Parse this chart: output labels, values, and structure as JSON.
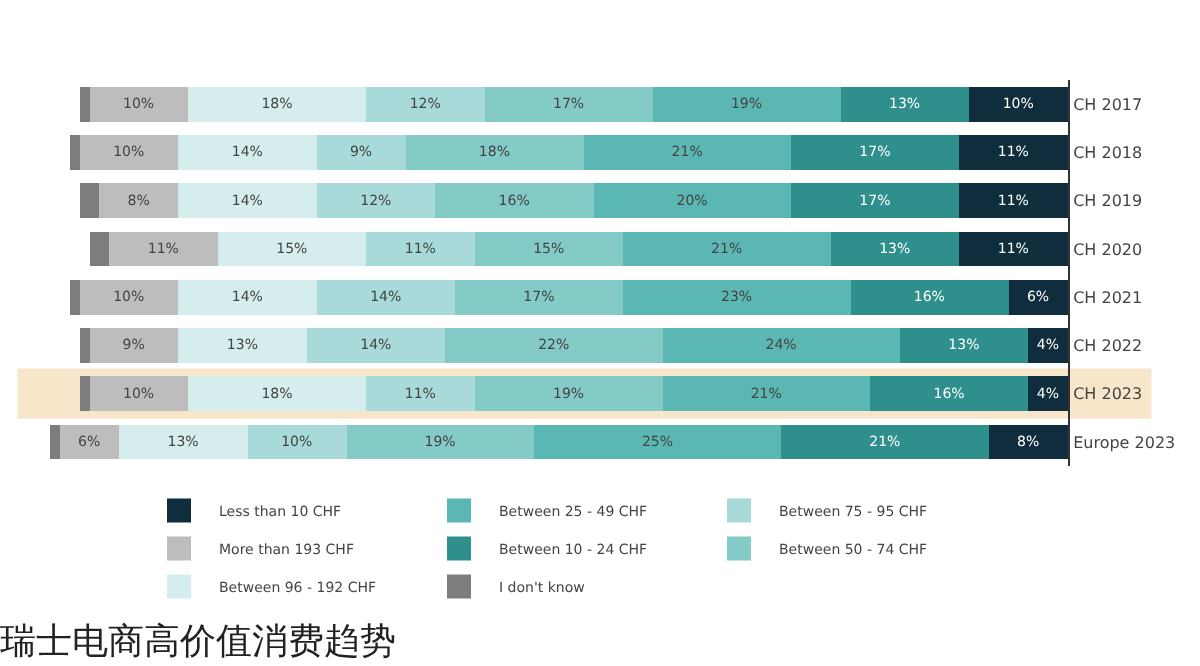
{
  "chart_data": {
    "type": "bar",
    "orientation": "horizontal",
    "stacked": true,
    "title": "瑞士电商高价值消费趋势",
    "categories": [
      "CH 2017",
      "CH 2018",
      "CH 2019",
      "CH 2020",
      "CH 2021",
      "CH 2022",
      "CH 2023",
      "Europe 2023"
    ],
    "xlim": [
      103,
      0
    ],
    "legend": "bottom",
    "tick_labels": "y",
    "series": [
      {
        "name": "Less than 10 CHF",
        "color": "#0f2d3d",
        "values": [
          10,
          11,
          11,
          11,
          6,
          4,
          4,
          8
        ],
        "value_labels": [
          "10%",
          "11%",
          "11%",
          "11%",
          "6%",
          "4%",
          "4%",
          "8%"
        ]
      },
      {
        "name": "Between 10 - 24 CHF",
        "color": "#2e8f8c",
        "values": [
          13,
          17,
          17,
          13,
          16,
          13,
          16,
          21
        ],
        "value_labels": [
          "13%",
          "17%",
          "17%",
          "13%",
          "16%",
          "13%",
          "16%",
          "21%"
        ]
      },
      {
        "name": "Between 25 - 49 CHF",
        "color": "#5ab7b4",
        "values": [
          19,
          21,
          20,
          21,
          23,
          24,
          21,
          25
        ],
        "value_labels": [
          "19%",
          "21%",
          "20%",
          "21%",
          "23%",
          "24%",
          "21%",
          "25%"
        ]
      },
      {
        "name": "Between 50 - 74 CHF",
        "color": "#84cac6",
        "values": [
          17,
          18,
          16,
          15,
          17,
          22,
          19,
          19
        ],
        "value_labels": [
          "17%",
          "18%",
          "16%",
          "15%",
          "17%",
          "22%",
          "19%",
          "19%"
        ]
      },
      {
        "name": "Between 75 - 95 CHF",
        "color": "#a9dada",
        "values": [
          12,
          9,
          12,
          11,
          14,
          14,
          11,
          10
        ],
        "value_labels": [
          "12%",
          "9%",
          "12%",
          "11%",
          "14%",
          "14%",
          "11%",
          "10%"
        ]
      },
      {
        "name": "Between 96 - 192 CHF",
        "color": "#d6edee",
        "values": [
          18,
          14,
          14,
          15,
          14,
          13,
          18,
          13
        ],
        "value_labels": [
          "18%",
          "14%",
          "14%",
          "15%",
          "14%",
          "13%",
          "18%",
          "13%"
        ]
      },
      {
        "name": "More than 193 CHF",
        "color": "#bdbdbd",
        "values": [
          10,
          10,
          8,
          11,
          10,
          9,
          10,
          6
        ],
        "value_labels": [
          "10%",
          "10%",
          "8%",
          "11%",
          "10%",
          "9%",
          "10%",
          "6%"
        ]
      },
      {
        "name": "I don't know",
        "color": "#7d7d7d",
        "values": [
          1,
          1,
          2,
          2,
          1,
          1,
          1,
          1
        ],
        "value_labels": [
          null,
          null,
          null,
          null,
          null,
          null,
          null,
          null
        ]
      }
    ],
    "bands": [
      {
        "axis": "y",
        "from": "CH 2023",
        "to": "CH 2023",
        "color": "#e0a030"
      }
    ]
  }
}
